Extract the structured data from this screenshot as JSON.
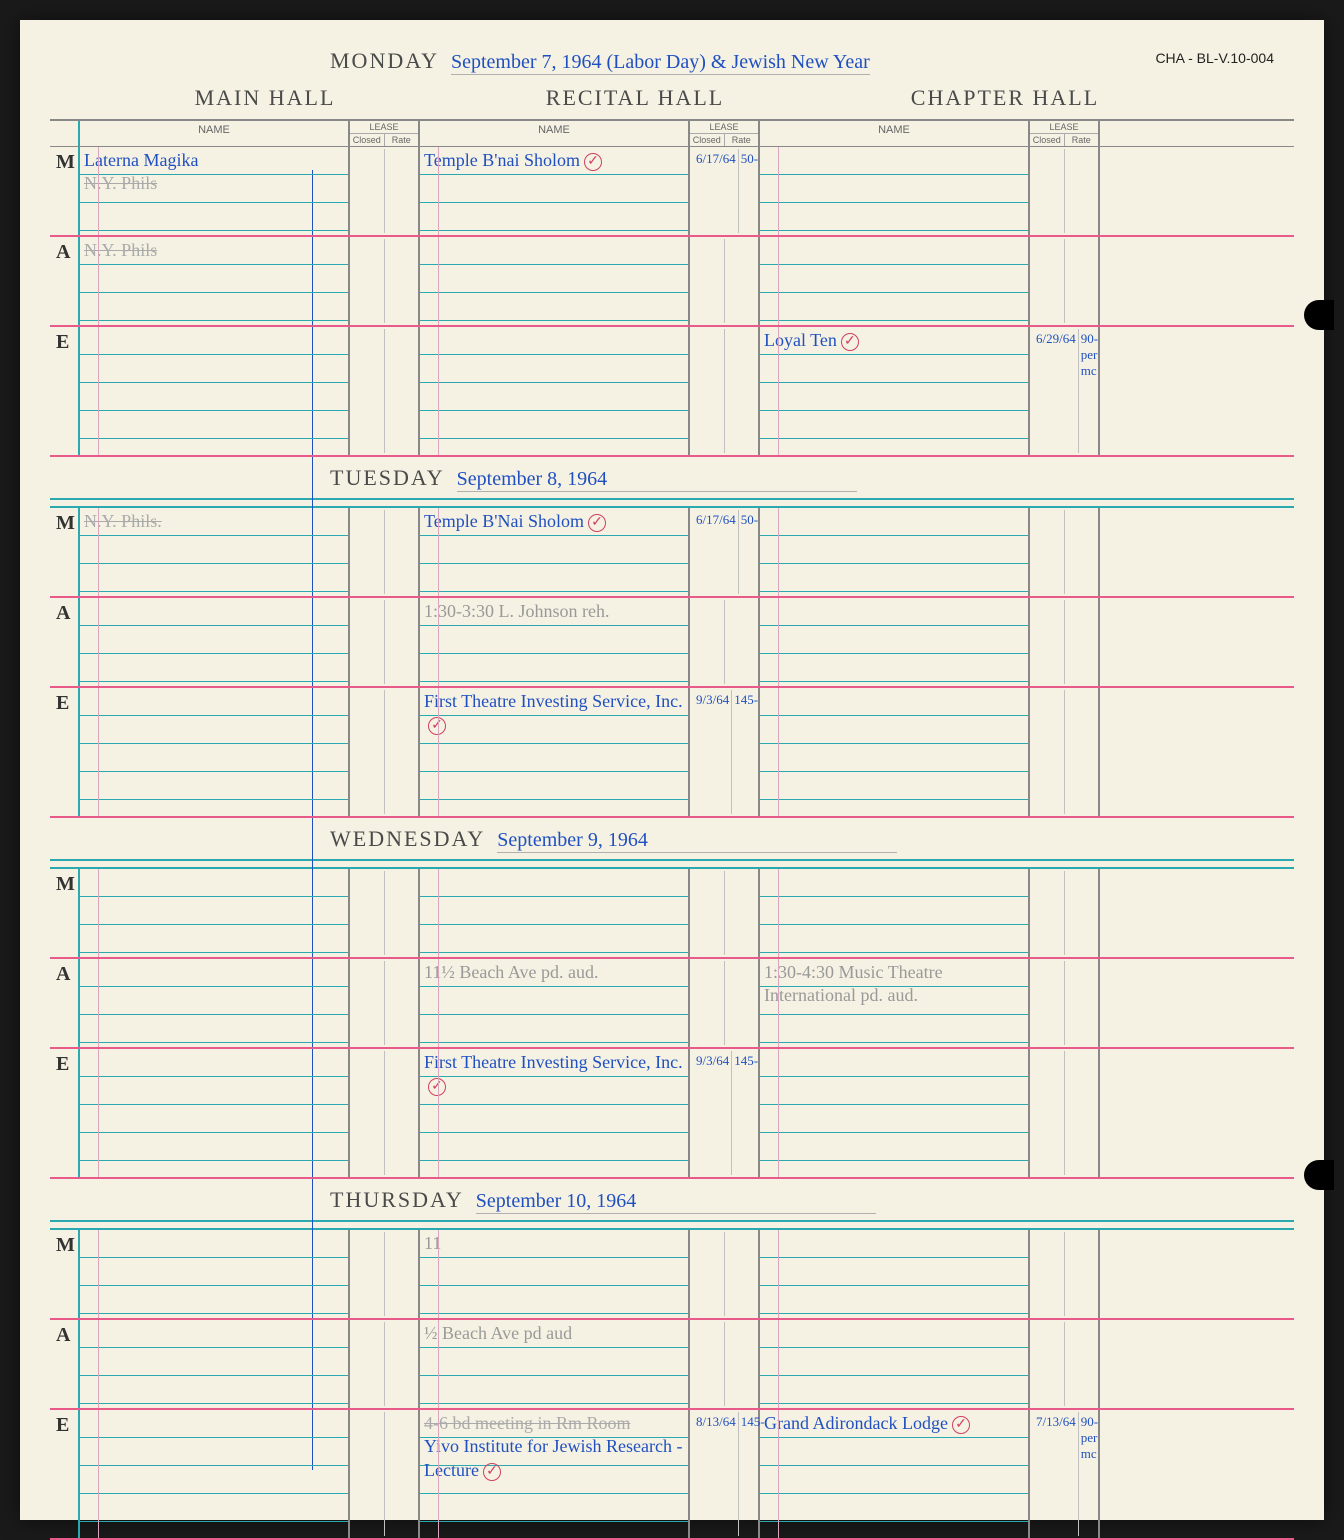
{
  "corner_id": "CHA - BL-V.10-004",
  "halls": [
    "MAIN HALL",
    "RECITAL HALL",
    "CHAPTER HALL"
  ],
  "subheader": {
    "name": "NAME",
    "lease": "LEASE",
    "closed": "Closed",
    "rate": "Rate"
  },
  "sessions": [
    "M",
    "A",
    "E"
  ],
  "days": [
    {
      "weekday": "MONDAY",
      "date": "September 7, 1964 (Labor Day) & Jewish New Year",
      "rows": [
        {
          "session": "M",
          "main": {
            "name": "Laterna Magika",
            "name2_strike": "N.Y. Phils"
          },
          "recital": {
            "name": "Temple B'nai Sholom",
            "checked": true,
            "closed": "6/17/64",
            "rate": "50-"
          },
          "chapter": {}
        },
        {
          "session": "A",
          "main": {
            "name_strike": "N.Y. Phils"
          },
          "recital": {},
          "chapter": {}
        },
        {
          "session": "E",
          "main": {},
          "recital": {},
          "chapter": {
            "name": "Loyal Ten",
            "checked": true,
            "closed": "6/29/64",
            "rate": "90-",
            "note": "per mc"
          }
        }
      ]
    },
    {
      "weekday": "TUESDAY",
      "date": "September 8, 1964",
      "rows": [
        {
          "session": "M",
          "main": {
            "name_strike": "N.Y. Phils."
          },
          "recital": {
            "name": "Temple B'Nai Sholom",
            "checked": true,
            "closed": "6/17/64",
            "rate": "50-"
          },
          "chapter": {}
        },
        {
          "session": "A",
          "main": {},
          "recital": {
            "name_pencil": "1:30-3:30 L. Johnson reh."
          },
          "chapter": {}
        },
        {
          "session": "E",
          "main": {},
          "recital": {
            "name": "First Theatre Investing Service, Inc.",
            "checked": true,
            "closed": "9/3/64",
            "rate": "145-"
          },
          "chapter": {}
        }
      ]
    },
    {
      "weekday": "WEDNESDAY",
      "date": "September 9, 1964",
      "rows": [
        {
          "session": "M",
          "main": {},
          "recital": {},
          "chapter": {}
        },
        {
          "session": "A",
          "main": {},
          "recital": {
            "name_pencil": "11½ Beach Ave pd. aud."
          },
          "chapter": {
            "name_pencil": "1:30-4:30 Music Theatre International pd. aud."
          }
        },
        {
          "session": "E",
          "main": {},
          "recital": {
            "name": "First Theatre Investing Service, Inc.",
            "checked": true,
            "closed": "9/3/64",
            "rate": "145-"
          },
          "chapter": {}
        }
      ]
    },
    {
      "weekday": "THURSDAY",
      "date": "September 10, 1964",
      "rows": [
        {
          "session": "M",
          "main": {},
          "recital": {
            "name_pencil": "11"
          },
          "chapter": {}
        },
        {
          "session": "A",
          "main": {},
          "recital": {
            "name_pencil": "½ Beach Ave pd aud"
          },
          "chapter": {}
        },
        {
          "session": "E",
          "main": {},
          "recital": {
            "name_strike": "4-6 bd meeting in Rm Room",
            "name": "Yivo Institute for Jewish Research - Lecture",
            "checked": true,
            "closed": "8/13/64",
            "rate": "145-"
          },
          "chapter": {
            "name": "Grand Adirondack Lodge",
            "checked": true,
            "closed": "7/13/64",
            "rate": "90-",
            "note": "per mc"
          }
        }
      ]
    }
  ],
  "colors": {
    "paper": "#f5f2e3",
    "ink_blue": "#2050c0",
    "print_gray": "#4a4a4a",
    "rule_cyan": "#2aaab0",
    "rule_pink": "#e85a8a",
    "rule_gray": "#888",
    "red_circle": "#d04060",
    "pencil": "#999"
  }
}
